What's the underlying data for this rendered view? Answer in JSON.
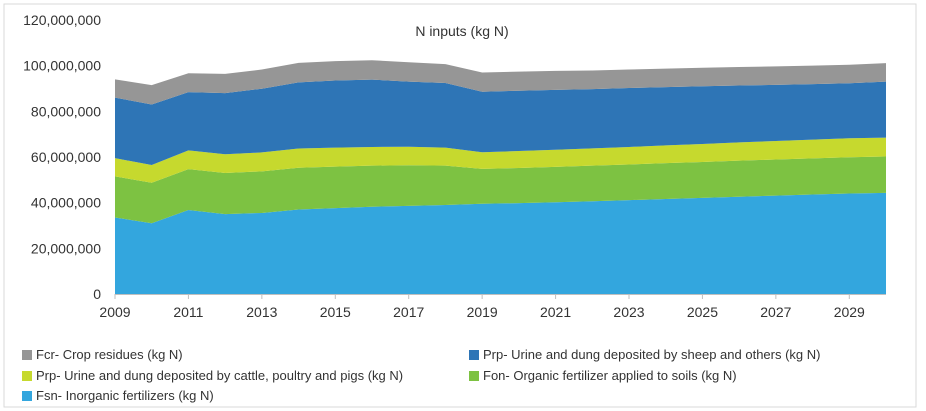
{
  "chart_data": {
    "type": "area",
    "stacked": true,
    "title": "N inputs (kg N)",
    "xlabel": "",
    "ylabel": "",
    "x": [
      2009,
      2010,
      2011,
      2012,
      2013,
      2014,
      2015,
      2016,
      2017,
      2018,
      2019,
      2020,
      2021,
      2022,
      2023,
      2024,
      2025,
      2026,
      2027,
      2028,
      2029,
      2030
    ],
    "xticks": [
      "2009",
      "2011",
      "2013",
      "2015",
      "2017",
      "2019",
      "2021",
      "2023",
      "2025",
      "2027",
      "2029"
    ],
    "yticks": [
      "0",
      "20,000,000",
      "40,000,000",
      "60,000,000",
      "80,000,000",
      "100,000,000",
      "120,000,000"
    ],
    "ylim": [
      0,
      120000000
    ],
    "grid": false,
    "legend_position": "bottom",
    "series": [
      {
        "name": "Fsn- Inorganic fertilizers (kg N)",
        "color": "#33a6de",
        "values": [
          33500000,
          31000000,
          36800000,
          35000000,
          35500000,
          37000000,
          37600000,
          38200000,
          38600000,
          39000000,
          39500000,
          39800000,
          40200000,
          40600000,
          41100000,
          41600000,
          42100000,
          42600000,
          43100000,
          43600000,
          44000000,
          44300000
        ]
      },
      {
        "name": "Fon- Organic fertilizer applied to soils (kg N)",
        "color": "#7dc242",
        "values": [
          18000000,
          17700000,
          17900000,
          18000000,
          18200000,
          18300000,
          18200000,
          18000000,
          17800000,
          17200000,
          15300000,
          15400000,
          15500000,
          15600000,
          15600000,
          15700000,
          15700000,
          15800000,
          15800000,
          15800000,
          15900000,
          15900000
        ]
      },
      {
        "name": "Prp- Urine and dung deposited by cattle, poultry and pigs (kg N)",
        "color": "#c6d92e",
        "values": [
          8000000,
          7800000,
          8200000,
          8200000,
          8300000,
          8400000,
          8300000,
          8200000,
          8100000,
          7900000,
          7300000,
          7400000,
          7500000,
          7600000,
          7700000,
          7800000,
          7900000,
          8000000,
          8100000,
          8200000,
          8300000,
          8300000
        ]
      },
      {
        "name": "Prp- Urine and dung deposited by sheep and others (kg N)",
        "color": "#2e75b6",
        "values": [
          26500000,
          26500000,
          25500000,
          26800000,
          27900000,
          29000000,
          29400000,
          29500000,
          28500000,
          28300000,
          26500000,
          26400000,
          26200000,
          25900000,
          25800000,
          25500000,
          25300000,
          24900000,
          24600000,
          24300000,
          24100000,
          24500000
        ]
      },
      {
        "name": "Fcr- Crop residues (kg N)",
        "color": "#969696",
        "values": [
          8000000,
          8500000,
          8300000,
          8400000,
          8400000,
          8500000,
          8500000,
          8500000,
          8500000,
          8300000,
          8400000,
          8400000,
          8300000,
          8200000,
          8100000,
          8100000,
          8100000,
          8100000,
          8100000,
          8100000,
          8100000,
          8100000
        ]
      }
    ],
    "legend": [
      "Fcr- Crop residues (kg N)",
      "Prp- Urine and dung deposited by sheep and others (kg N)",
      "Prp- Urine and dung deposited by cattle, poultry and pigs (kg N)",
      "Fon- Organic fertilizer applied to soils (kg N)",
      "Fsn- Inorganic fertilizers (kg N)"
    ]
  }
}
